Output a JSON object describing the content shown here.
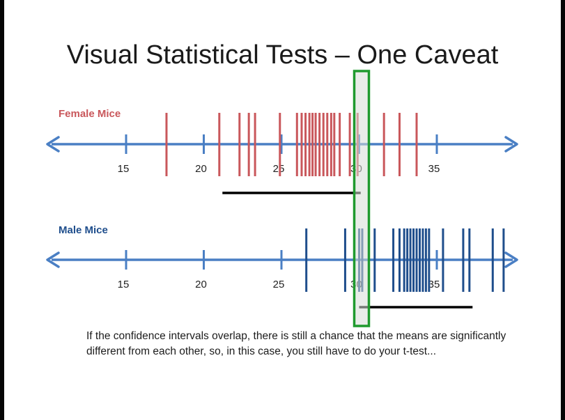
{
  "slide": {
    "title": "Visual Statistical Tests – One Caveat",
    "caption": "If the confidence intervals overlap, there is still a chance that the means are significantly different from each other, so, in this case, you still have to do your t-test..."
  },
  "colors": {
    "axis": "#4a7fc4",
    "female": "#c9575b",
    "male": "#1f4e8c",
    "ci_bar": "#000000",
    "highlight_border": "#1f9a2e",
    "highlight_fill": "#d7dcd7"
  },
  "chart_data": [
    {
      "type": "strip",
      "series_name": "Female Mice",
      "axis_ticks": [
        15,
        20,
        25,
        30,
        35
      ],
      "xlim": [
        11.5,
        40.5
      ],
      "values": [
        17.6,
        21.0,
        22.3,
        22.9,
        23.3,
        24.9,
        26.0,
        26.3,
        26.55,
        26.8,
        27.0,
        27.2,
        27.45,
        27.7,
        27.95,
        28.2,
        28.4,
        28.75,
        29.4,
        29.9,
        31.6,
        32.6,
        33.7
      ],
      "confidence_interval": [
        21.2,
        30.1
      ]
    },
    {
      "type": "strip",
      "series_name": "Male Mice",
      "axis_ticks": [
        15,
        20,
        25,
        30,
        35
      ],
      "xlim": [
        11.5,
        40.5
      ],
      "values": [
        26.6,
        29.1,
        30.0,
        30.2,
        31.0,
        32.2,
        32.6,
        32.9,
        33.1,
        33.3,
        33.5,
        33.7,
        33.9,
        34.1,
        34.3,
        34.5,
        35.4,
        36.7,
        37.1,
        38.6,
        39.3
      ],
      "confidence_interval": [
        30.0,
        37.3
      ]
    }
  ]
}
